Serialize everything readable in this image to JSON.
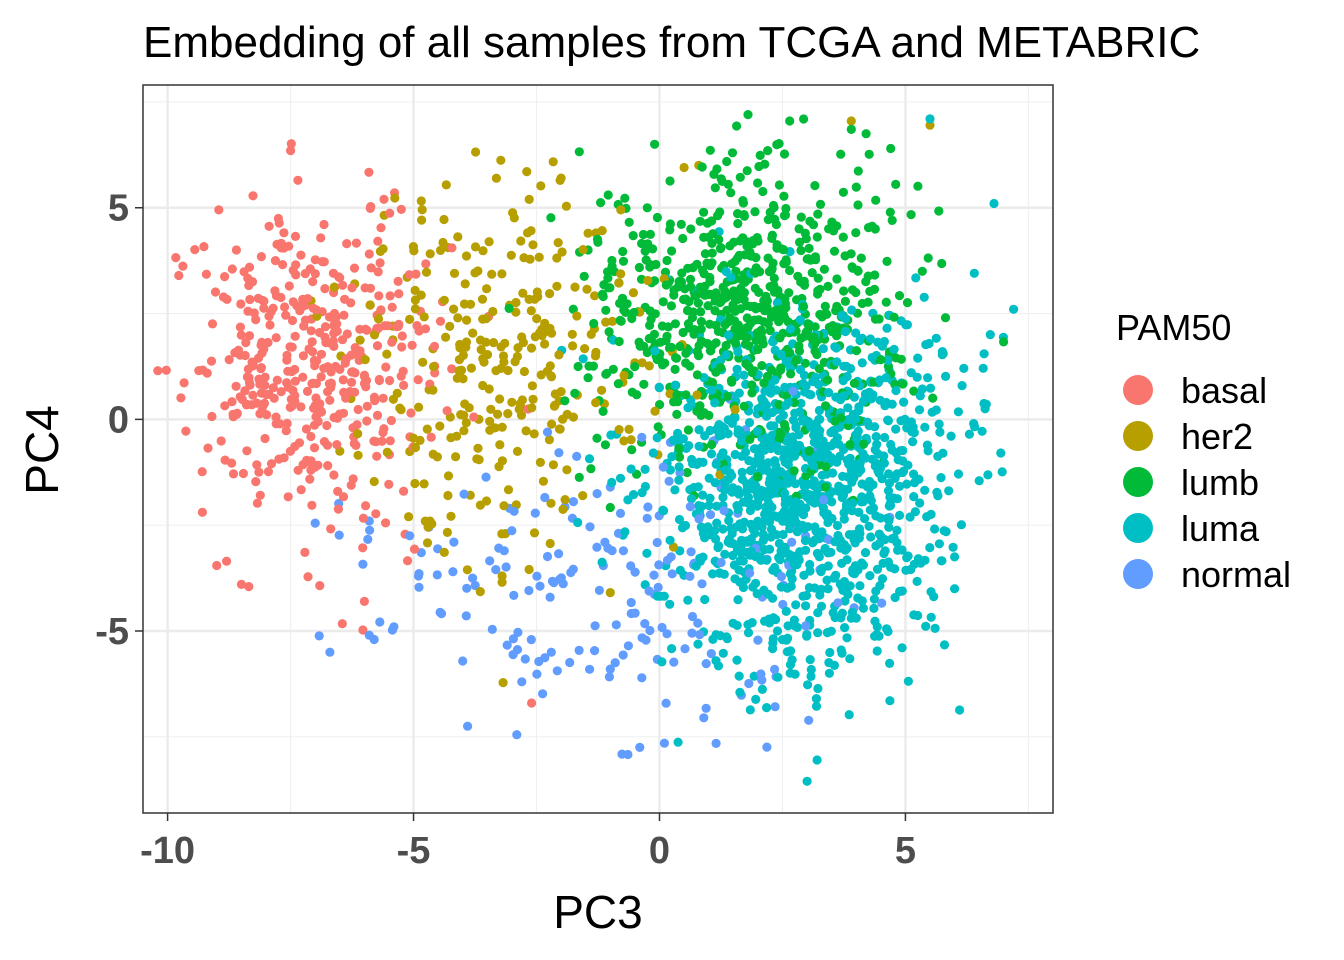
{
  "chart_data": {
    "type": "scatter",
    "title": "Embedding of all samples from TCGA and METABRIC",
    "xlabel": "PC3",
    "ylabel": "PC4",
    "xlim": [
      -10.5,
      8.0
    ],
    "ylim": [
      -9.3,
      7.9
    ],
    "x_ticks": [
      -10,
      -5,
      0,
      5
    ],
    "x_tick_labels": [
      "-10",
      "-5",
      "0",
      "5"
    ],
    "y_ticks": [
      -5,
      0,
      5
    ],
    "y_tick_labels": [
      "-5",
      "0",
      "5"
    ],
    "grid": true,
    "legend": {
      "title": "PAM50",
      "position": "right"
    },
    "series": [
      {
        "name": "basal",
        "color": "#F8766D",
        "count": 420,
        "center": [
          -7.2,
          1.4
        ],
        "spread": [
          1.35,
          2.1
        ],
        "points": [
          [
            -10.2,
            1.15
          ],
          [
            -7.5,
            6.35
          ],
          [
            -8.8,
            -3.35
          ],
          [
            -8.5,
            -3.9
          ],
          [
            -8.35,
            -3.95
          ],
          [
            -6.0,
            -4.3
          ],
          [
            -2.6,
            -6.7
          ],
          [
            -5.6,
            5.2
          ]
        ]
      },
      {
        "name": "her2",
        "color": "#B79F00",
        "count": 300,
        "center": [
          -3.2,
          1.2
        ],
        "spread": [
          1.5,
          2.2
        ],
        "points": [
          [
            -3.2,
            -3.7
          ],
          [
            -3.2,
            -3.85
          ],
          [
            -2.0,
            5.7
          ],
          [
            0.5,
            5.95
          ],
          [
            0.8,
            6.0
          ],
          [
            3.9,
            7.05
          ],
          [
            5.5,
            6.95
          ],
          [
            -5.1,
            -2.3
          ]
        ]
      },
      {
        "name": "lumb",
        "color": "#00BA38",
        "count": 700,
        "center": [
          1.8,
          2.6
        ],
        "spread": [
          1.6,
          1.7
        ],
        "points": [
          [
            1.8,
            7.2
          ],
          [
            3.9,
            6.85
          ],
          [
            4.2,
            6.75
          ],
          [
            4.7,
            6.4
          ],
          [
            -0.1,
            6.5
          ],
          [
            2.2,
            6.35
          ],
          [
            -1.1,
            -0.6
          ]
        ]
      },
      {
        "name": "luma",
        "color": "#00BFC4",
        "count": 1100,
        "center": [
          2.9,
          -1.6
        ],
        "spread": [
          1.5,
          2.0
        ],
        "points": [
          [
            3.0,
            -8.55
          ],
          [
            6.8,
            5.1
          ],
          [
            7.2,
            2.6
          ],
          [
            5.5,
            7.1
          ],
          [
            6.4,
            3.45
          ],
          [
            6.6,
            1.55
          ],
          [
            5.7,
            -0.3
          ],
          [
            6.0,
            -4.0
          ],
          [
            6.5,
            -1.45
          ],
          [
            6.0,
            -3.25
          ],
          [
            6.3,
            -0.35
          ]
        ]
      },
      {
        "name": "normal",
        "color": "#619CFF",
        "count": 180,
        "center": [
          -0.8,
          -3.8
        ],
        "spread": [
          2.6,
          1.7
        ],
        "points": [
          [
            -6.7,
            -5.5
          ],
          [
            -7.0,
            -2.45
          ],
          [
            -5.4,
            -4.9
          ],
          [
            -5.9,
            -5.1
          ],
          [
            -5.8,
            -5.2
          ],
          [
            -3.9,
            -7.25
          ],
          [
            -2.9,
            -7.45
          ],
          [
            -0.4,
            -7.75
          ],
          [
            0.1,
            -7.65
          ],
          [
            -0.9,
            -5.75
          ],
          [
            -1.0,
            -5.9
          ],
          [
            -2.2,
            -5.5
          ],
          [
            -4.2,
            -3.6
          ],
          [
            -2.8,
            -6.2
          ],
          [
            0.9,
            -7.05
          ],
          [
            -5.9,
            -2.4
          ],
          [
            -4.9,
            -3.7
          ],
          [
            -3.8,
            -3.75
          ]
        ]
      }
    ]
  }
}
